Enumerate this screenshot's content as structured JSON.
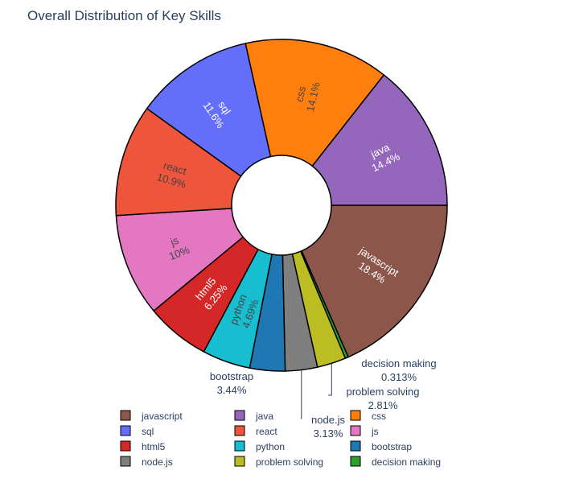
{
  "chart_data": {
    "type": "pie",
    "hole": true,
    "title": "Overall Distribution of Key Skills",
    "slices": [
      {
        "label": "javascript",
        "value": 18.4,
        "pct_text": "18.4%",
        "color": "#8c564b"
      },
      {
        "label": "decision making",
        "value": 0.313,
        "pct_text": "0.313%",
        "color": "#2ca02c"
      },
      {
        "label": "problem solving",
        "value": 2.81,
        "pct_text": "2.81%",
        "color": "#bcbd22"
      },
      {
        "label": "node.js",
        "value": 3.13,
        "pct_text": "3.13%",
        "color": "#7f7f7f"
      },
      {
        "label": "bootstrap",
        "value": 3.44,
        "pct_text": "3.44%",
        "color": "#1f77b4"
      },
      {
        "label": "python",
        "value": 4.69,
        "pct_text": "4.69%",
        "color": "#17becf"
      },
      {
        "label": "html5",
        "value": 6.25,
        "pct_text": "6.25%",
        "color": "#d62728"
      },
      {
        "label": "js",
        "value": 10.0,
        "pct_text": "10%",
        "color": "#e377c2"
      },
      {
        "label": "react",
        "value": 10.9,
        "pct_text": "10.9%",
        "color": "#ef553b"
      },
      {
        "label": "sql",
        "value": 11.6,
        "pct_text": "11.6%",
        "color": "#636efa"
      },
      {
        "label": "css",
        "value": 14.1,
        "pct_text": "14.1%",
        "color": "#ff7f0e"
      },
      {
        "label": "java",
        "value": 14.4,
        "pct_text": "14.4%",
        "color": "#9467bd"
      }
    ],
    "legend": {
      "placement": "bottom",
      "items": [
        "javascript",
        "java",
        "css",
        "sql",
        "react",
        "js",
        "html5",
        "python",
        "bootstrap",
        "node.js",
        "problem solving",
        "decision making"
      ]
    }
  }
}
